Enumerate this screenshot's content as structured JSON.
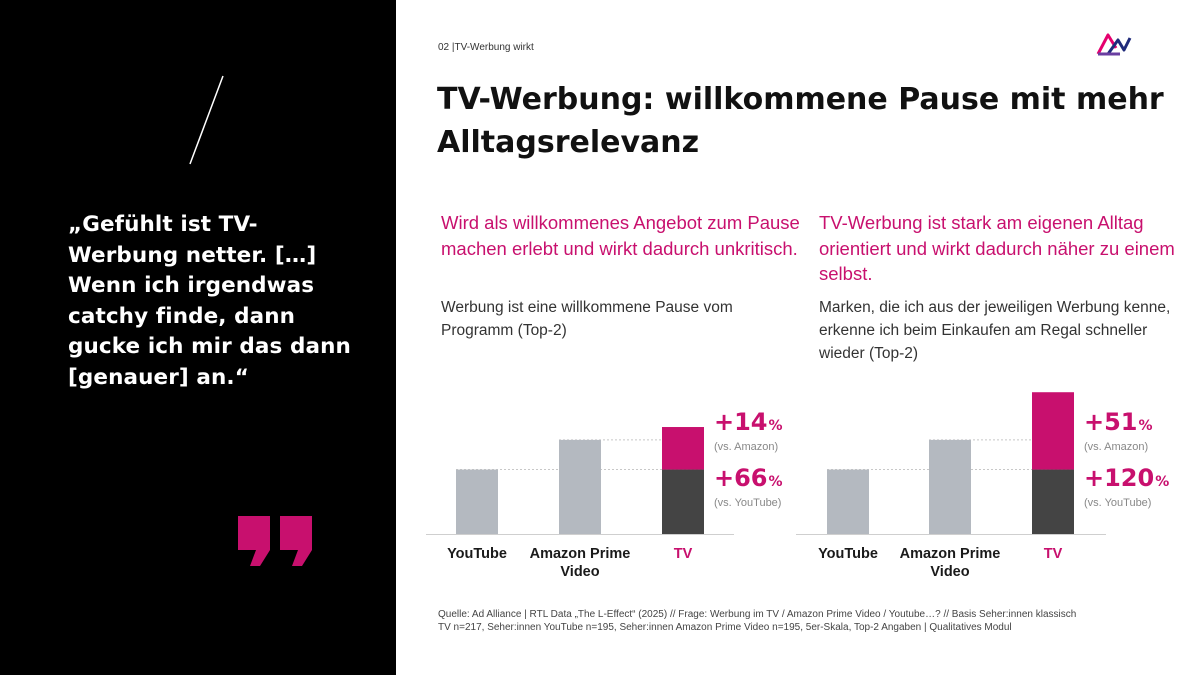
{
  "section_label": "02 |TV-Werbung wirkt",
  "title": "TV-Werbung: willkommene Pause mit mehr Alltagsrelevanz",
  "quote": {
    "text": "„Gefühlt ist TV-Werbung netter. […] Wenn ich irgendwas catchy finde, dann gucke ich mir das dann [genauer] an.“",
    "icon": "quote-mark-icon"
  },
  "logo_icon": "ad-alliance-logo-icon",
  "colors": {
    "accent": "#c8106e",
    "bar_grey": "#b4b9c0",
    "bar_dark": "#444444",
    "black_panel": "#000000"
  },
  "panels": [
    {
      "heading": "Wird als willkommenes Angebot zum Pause machen erlebt und wirkt dadurch unkritisch.",
      "subtitle": "Werbung ist eine willkommene Pause vom Programm (Top-2)",
      "deltas": [
        {
          "value": "+14",
          "unit": "%",
          "note": "(vs. Amazon)"
        },
        {
          "value": "+66",
          "unit": "%",
          "note": "(vs. YouTube)"
        }
      ]
    },
    {
      "heading": "TV-Werbung ist stark am eigenen Alltag orientiert und wirkt dadurch näher zu einem selbst.",
      "subtitle": "Marken, die ich aus der jeweiligen Werbung kenne, erkenne ich beim Einkaufen am Regal schneller wieder (Top-2)",
      "deltas": [
        {
          "value": "+51",
          "unit": "%",
          "note": "(vs. Amazon)"
        },
        {
          "value": "+120",
          "unit": "%",
          "note": "(vs. YouTube)"
        }
      ]
    }
  ],
  "chart_data": [
    {
      "type": "bar",
      "categories": [
        "YouTube",
        "Amazon Prime Video",
        "TV"
      ],
      "values": [
        1.0,
        1.46,
        1.66
      ],
      "ylim": [
        0,
        2.7
      ],
      "grid": false
    },
    {
      "type": "bar",
      "categories": [
        "YouTube",
        "Amazon Prime Video",
        "TV"
      ],
      "values": [
        1.0,
        1.46,
        2.2
      ],
      "ylim": [
        0,
        2.7
      ],
      "grid": false
    }
  ],
  "source": "Quelle: Ad Alliance | RTL Data „The L-Effect“ (2025) // Frage: Werbung im TV / Amazon Prime Video / Youtube…? // Basis Seher:innen klassisch TV n=217, Seher:innen YouTube n=195, Seher:innen Amazon Prime Video n=195, 5er-Skala, Top-2 Angaben | Qualitatives Modul"
}
